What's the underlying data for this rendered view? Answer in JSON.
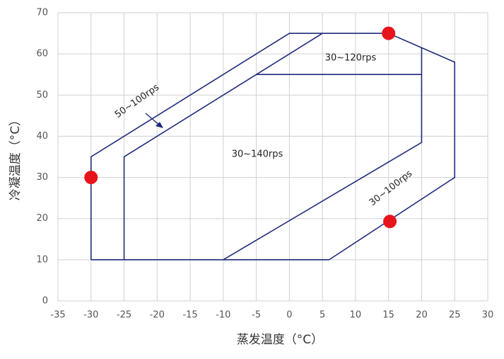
{
  "chart_data": {
    "type": "line",
    "xlabel": "蒸发温度（°C）",
    "ylabel": "冷凝温度（°C）",
    "xlim": [
      -35,
      30
    ],
    "xticks": [
      -35,
      -30,
      -25,
      -20,
      -15,
      -10,
      -5,
      0,
      5,
      10,
      15,
      20,
      25,
      30
    ],
    "ylim": [
      0,
      70
    ],
    "yticks": [
      0,
      10,
      20,
      30,
      40,
      50,
      60,
      70
    ],
    "grid": true,
    "series": [
      {
        "color": "#1f2a7a",
        "x": [
          -30,
          -30,
          0,
          15,
          25,
          25,
          6,
          -30
        ],
        "y": [
          10,
          35,
          65,
          65,
          58,
          30,
          10,
          10
        ]
      },
      {
        "color": "#1f2a7a",
        "x": [
          -25,
          -25,
          5
        ],
        "y": [
          10,
          35,
          65
        ]
      },
      {
        "color": "#1f2a7a",
        "x": [
          -5,
          20
        ],
        "y": [
          55,
          55
        ]
      },
      {
        "color": "#1f2a7a",
        "x": [
          20,
          20,
          -10
        ],
        "y": [
          61.5,
          38.5,
          10
        ]
      }
    ],
    "points": {
      "color": "#e8141b",
      "x": [
        -30,
        15,
        15.2
      ],
      "y": [
        30,
        65,
        19.3
      ]
    },
    "annotations": [
      "50~100rps",
      "30~120rps",
      "30~140rps",
      "30~100rps"
    ]
  }
}
